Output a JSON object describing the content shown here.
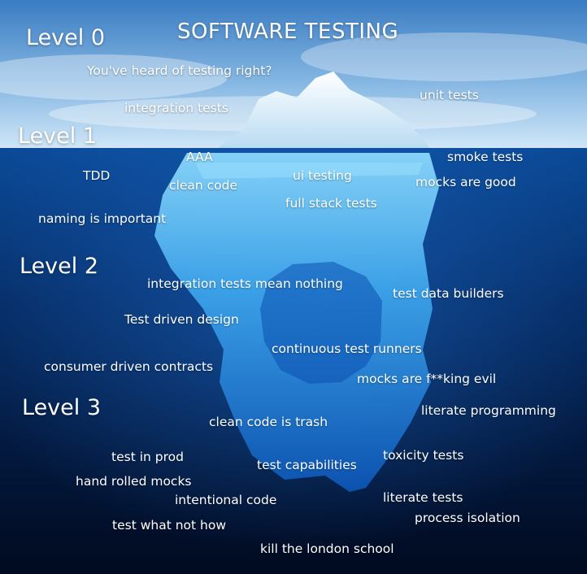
{
  "title": "SOFTWARE TESTING",
  "levels": [
    "Level 0",
    "Level 1",
    "Level 2",
    "Level 3"
  ],
  "labels": {
    "heard_of_testing": "You've heard of testing right?",
    "integration_tests": "integration tests",
    "unit_tests": "unit tests",
    "aaa": "AAA",
    "smoke_tests": "smoke tests",
    "tdd": "TDD",
    "clean_code": "clean code",
    "ui_testing": "ui testing",
    "mocks_are_good": "mocks are good",
    "full_stack_tests": "full stack tests",
    "naming_is_important": "naming is important",
    "integration_tests_mean_nothing": "integration tests mean nothing",
    "test_data_builders": "test data builders",
    "test_driven_design": "Test driven design",
    "continuous_test_runners": "continuous test runners",
    "consumer_driven_contracts": "consumer driven contracts",
    "mocks_are_evil": "mocks are f**king evil",
    "literate_programming": "literate programming",
    "clean_code_is_trash": "clean code is trash",
    "test_in_prod": "test in prod",
    "toxicity_tests": "toxicity tests",
    "test_capabilities": "test capabilities",
    "hand_rolled_mocks": "hand rolled mocks",
    "intentional_code": "intentional code",
    "literate_tests": "literate tests",
    "process_isolation": "process isolation",
    "test_what_not_how": "test what not how",
    "kill_the_london_school": "kill the london school"
  },
  "colors": {
    "sky_top": "#3d7fc4",
    "sky_bottom": "#bcd9f0",
    "water_top": "#0a3d86",
    "water_bottom": "#010c24",
    "ice": "#4fb6f2",
    "text": "#ffffff"
  }
}
